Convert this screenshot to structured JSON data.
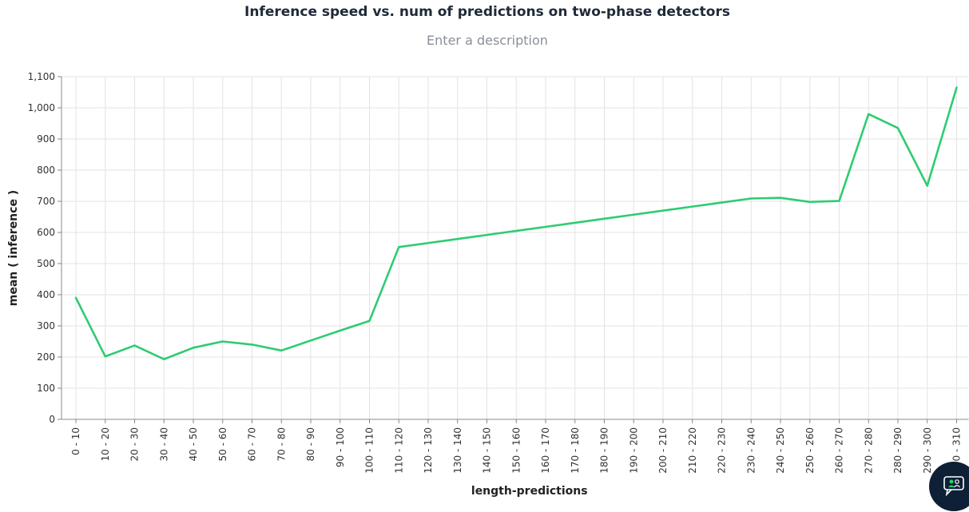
{
  "header": {
    "title": "Inference speed vs. num of predictions on two-phase detectors",
    "description_placeholder": "Enter a description"
  },
  "fab": {
    "icon": "chat-support-icon"
  },
  "chart_data": {
    "type": "line",
    "title": "Inference speed vs. num of predictions on two-phase detectors",
    "xlabel": "length-predictions",
    "ylabel": "mean ( inference )",
    "ylim": [
      0,
      1100
    ],
    "yticks": [
      "0",
      "100",
      "200",
      "300",
      "400",
      "500",
      "600",
      "700",
      "800",
      "900",
      "1,000",
      "1,100"
    ],
    "grid": true,
    "line_color": "#2ecc71",
    "categories": [
      "0 - 10",
      "10 - 20",
      "20 - 30",
      "30 - 40",
      "40 - 50",
      "50 - 60",
      "60 - 70",
      "70 - 80",
      "80 - 90",
      "90 - 100",
      "100 - 110",
      "110 - 120",
      "120 - 130",
      "130 - 140",
      "140 - 150",
      "150 - 160",
      "160 - 170",
      "170 - 180",
      "180 - 190",
      "190 - 200",
      "200 - 210",
      "210 - 220",
      "220 - 230",
      "230 - 240",
      "240 - 250",
      "250 - 260",
      "260 - 270",
      "270 - 280",
      "280 - 290",
      "290 - 300",
      "300 - 310"
    ],
    "values": [
      390,
      202,
      237,
      193,
      230,
      250,
      240,
      221,
      253,
      285,
      316,
      553,
      566,
      579,
      592,
      605,
      618,
      631,
      644,
      657,
      670,
      683,
      696,
      709,
      711,
      698,
      701,
      980,
      935,
      750,
      1065
    ]
  }
}
